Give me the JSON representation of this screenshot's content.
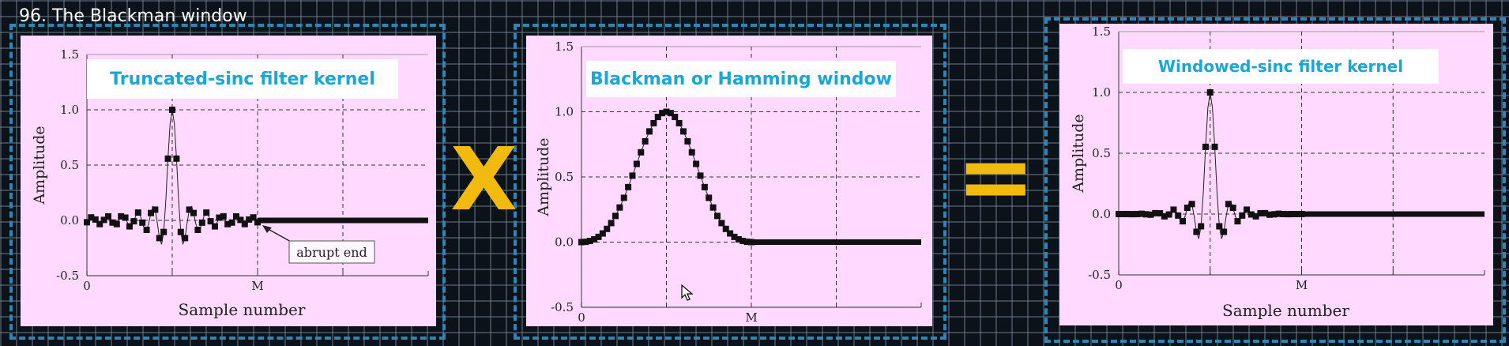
{
  "video_title": "96. The Blackman window",
  "operator_multiply": "X",
  "operator_equals": "=",
  "colors": {
    "accent_frame": "#2d86b8",
    "panel_bg": "#ffd9ff",
    "banner_text": "#1aa6d6",
    "operator": "#f2b90f"
  },
  "chart_data": [
    {
      "type": "scatter",
      "title": "Truncated-sinc filter kernel",
      "xlabel": "Sample number",
      "ylabel": "Amplitude",
      "ylim": [
        -0.5,
        1.5
      ],
      "yticks": [
        "-0.5",
        "0.0",
        "0.5",
        "1.0",
        "1.5"
      ],
      "xticks": [
        "0",
        "M"
      ],
      "grid": true,
      "annotation": "abrupt end",
      "signal": "truncated_sinc",
      "series": [
        {
          "points_start": 0,
          "points_end": 80,
          "tail_value": 0.0
        }
      ]
    },
    {
      "type": "scatter",
      "title": "Blackman or Hamming window",
      "xlabel": "",
      "ylabel": "Amplitude",
      "ylim": [
        -0.5,
        1.5
      ],
      "yticks": [
        "-0.5",
        "0.0",
        "0.5",
        "1.0",
        "1.5"
      ],
      "xticks": [
        "0",
        "M"
      ],
      "grid": true,
      "signal": "blackman",
      "series": [
        {
          "points_start": 0,
          "points_end": 80,
          "tail_value": 0.0
        }
      ]
    },
    {
      "type": "scatter",
      "title": "Windowed-sinc filter kernel",
      "xlabel": "Sample number",
      "ylabel": "Amplitude",
      "ylim": [
        -0.5,
        1.5
      ],
      "yticks": [
        "-0.5",
        "0.0",
        "0.5",
        "1.0",
        "1.5"
      ],
      "xticks": [
        "0",
        "M"
      ],
      "grid": true,
      "signal": "windowed_sinc",
      "series": [
        {
          "points_start": 0,
          "points_end": 80,
          "tail_value": 0.0
        }
      ]
    }
  ]
}
